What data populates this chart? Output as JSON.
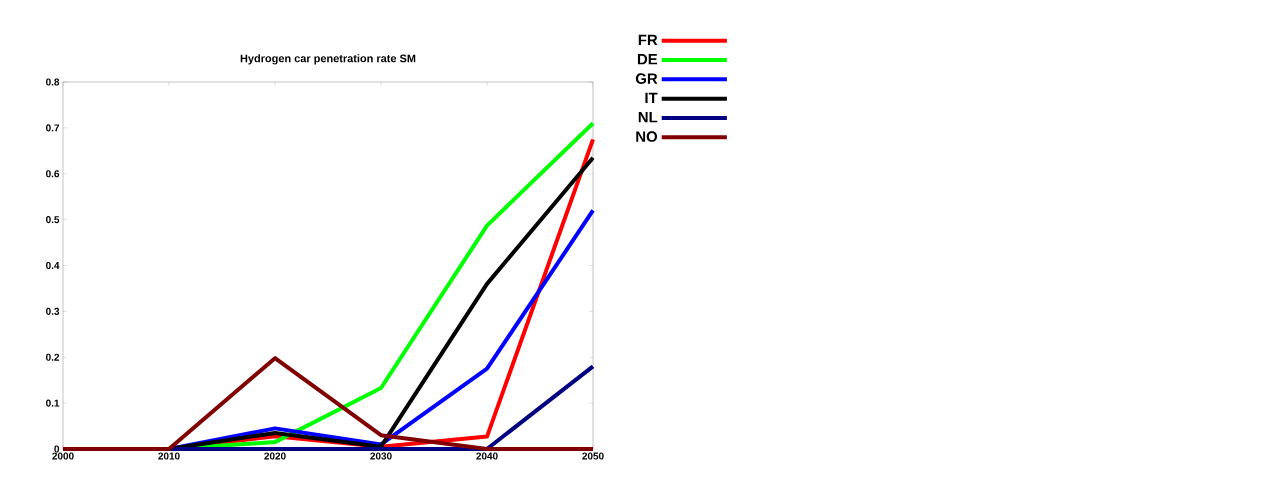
{
  "chart_data": {
    "type": "line",
    "title": "Hydrogen car penetration rate SM",
    "x": [
      2000,
      2010,
      2020,
      2030,
      2040,
      2050
    ],
    "series": [
      {
        "name": "FR",
        "color": "#ff0000",
        "values": [
          0,
          0,
          0.028,
          0.005,
          0.027,
          0.675
        ]
      },
      {
        "name": "DE",
        "color": "#00ff00",
        "values": [
          0,
          0,
          0.015,
          0.133,
          0.487,
          0.71
        ]
      },
      {
        "name": "GR",
        "color": "#0000ff",
        "values": [
          0,
          0,
          0.045,
          0.01,
          0.175,
          0.52
        ]
      },
      {
        "name": "IT",
        "color": "#000000",
        "values": [
          0,
          0,
          0.035,
          0.005,
          0.36,
          0.635
        ]
      },
      {
        "name": "NL",
        "color": "#000080",
        "values": [
          0,
          0,
          0,
          0,
          0,
          0.18
        ]
      },
      {
        "name": "NO",
        "color": "#800000",
        "values": [
          0,
          0,
          0.198,
          0.03,
          0,
          0
        ]
      }
    ],
    "xlim": [
      2000,
      2050
    ],
    "xticks": [
      2000,
      2010,
      2020,
      2030,
      2040,
      2050
    ],
    "ylim": [
      0,
      0.8
    ],
    "yticks": [
      0,
      0.1,
      0.2,
      0.3,
      0.4,
      0.5,
      0.6,
      0.7,
      0.8
    ],
    "grid": false,
    "legend": "right",
    "marker": "none",
    "line_style": "solid"
  }
}
